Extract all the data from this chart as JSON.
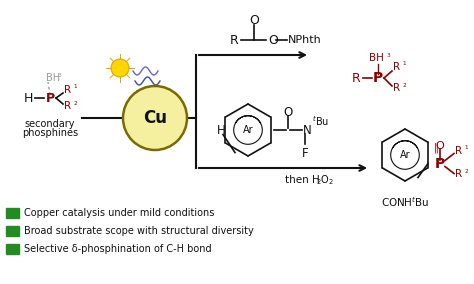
{
  "bg_color": "#ffffff",
  "dark_red": "#8B0000",
  "green": "#228B22",
  "black": "#111111",
  "gray": "#999999",
  "bullet_texts": [
    "Copper catalysis under mild conditions",
    "Broad substrate scope with structural diversity",
    "Selective δ-phosphination of C-H bond"
  ],
  "figsize": [
    4.74,
    2.84
  ],
  "dpi": 100
}
